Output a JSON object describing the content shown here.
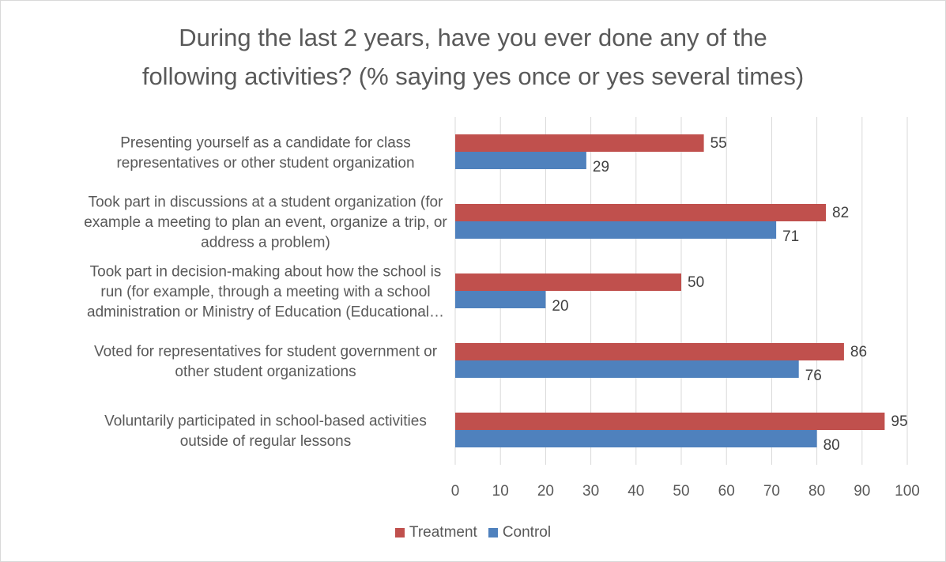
{
  "chart_data": {
    "type": "bar",
    "orientation": "horizontal",
    "title_lines": [
      "During the last 2 years, have you ever done any of the",
      "following activities? (% saying yes once or yes several times)"
    ],
    "categories": [
      [
        "Presenting yourself as a candidate for class",
        "representatives or other student organization"
      ],
      [
        "Took part in discussions at a student organization (for",
        "example a meeting to plan an event, organize a trip, or",
        "address a problem)"
      ],
      [
        "Took part in decision-making about how the school is",
        "run (for example, through a meeting with a school",
        "administration or Ministry of Education (Educational…"
      ],
      [
        "Voted for representatives for student government or",
        "other student organizations"
      ],
      [
        "Voluntarily participated in school-based activities",
        "outside of regular lessons"
      ]
    ],
    "series": [
      {
        "name": "Treatment",
        "color": "#c0504d",
        "values": [
          55,
          82,
          50,
          86,
          95
        ]
      },
      {
        "name": "Control",
        "color": "#4f81bd",
        "values": [
          29,
          71,
          20,
          76,
          80
        ]
      }
    ],
    "x_ticks": [
      "0",
      "10",
      "20",
      "30",
      "40",
      "50",
      "60",
      "70",
      "80",
      "90",
      "100"
    ],
    "xlim": [
      0,
      100
    ],
    "grid": "vertical",
    "legend_position": "bottom"
  }
}
